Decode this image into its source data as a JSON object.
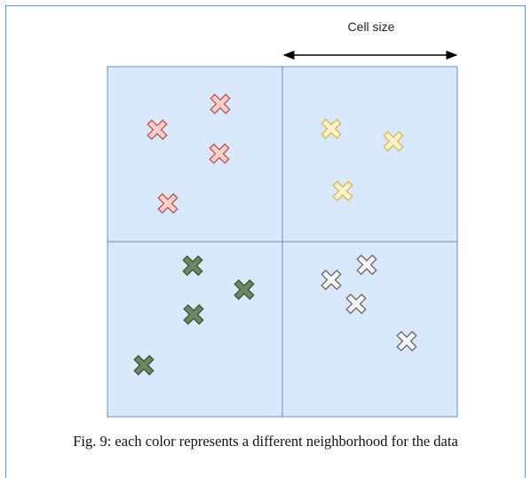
{
  "figure": {
    "cell_size_label": "Cell size",
    "caption": "Fig. 9: each color represents a different neighborhood for the data"
  },
  "colors": {
    "frame_border": "#5b9bd5",
    "cell_fill": "#dae8fc",
    "cell_border": "#6c8ebf",
    "arrow": "#000000",
    "red_cross_stroke": "#b85450",
    "red_cross_fill": "#f8cecc",
    "yellow_cross_stroke": "#d6b656",
    "yellow_cross_fill": "#fff2cc",
    "green_cross_stroke": "#3a5431",
    "green_cross_fill": "#6d8764",
    "gray_cross_stroke": "#666666",
    "gray_cross_fill": "#f5f5f5"
  },
  "grid": {
    "rows": 2,
    "cols": 2,
    "cells": [
      {
        "name": "top-left",
        "cluster": "red"
      },
      {
        "name": "top-right",
        "cluster": "yellow"
      },
      {
        "name": "bottom-left",
        "cluster": "green"
      },
      {
        "name": "bottom-right",
        "cluster": "gray"
      }
    ]
  },
  "neighborhoods": [
    {
      "color": "red",
      "count": 4
    },
    {
      "color": "yellow",
      "count": 3
    },
    {
      "color": "green",
      "count": 4
    },
    {
      "color": "gray",
      "count": 4
    }
  ]
}
